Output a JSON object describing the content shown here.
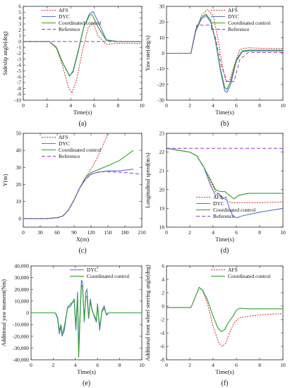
{
  "colors": {
    "AFS": "#d62728",
    "DYC": "#5b6fd6",
    "Coordinated control": "#2ca02c",
    "Reference": "#9b30d9"
  },
  "chart_data": [
    {
      "id": "a",
      "type": "line",
      "caption": "(a)",
      "xlabel": "Time(s)",
      "ylabel": "Sideslip angle(deg)",
      "xlim": [
        0,
        10
      ],
      "ylim": [
        -10,
        6
      ],
      "xticks": [
        0,
        2,
        4,
        6,
        8,
        10
      ],
      "yticks": [
        -10,
        -9,
        -8,
        -7,
        -6,
        -5,
        -4,
        -3,
        -2,
        -1,
        0,
        1,
        2,
        3,
        4,
        5,
        6
      ],
      "legend": "top-left",
      "series": [
        {
          "name": "AFS",
          "style": "dotted",
          "x": [
            0,
            2.2,
            2.8,
            3.3,
            3.8,
            4.1,
            4.5,
            5.0,
            5.5,
            5.9,
            6.3,
            7.0,
            8.0,
            10
          ],
          "y": [
            0,
            0,
            -1.2,
            -4,
            -7.8,
            -8.8,
            -6.5,
            -1.5,
            2.5,
            3.1,
            1.0,
            -0.5,
            -0.3,
            -0.3
          ]
        },
        {
          "name": "DYC",
          "style": "solid",
          "x": [
            0,
            2.2,
            2.8,
            3.3,
            3.9,
            4.2,
            4.6,
            5.1,
            5.6,
            5.9,
            6.4,
            7.0,
            8.0,
            10
          ],
          "y": [
            0,
            0,
            -1.0,
            -3.5,
            -5.8,
            -5.2,
            -2.0,
            2.5,
            4.8,
            5.1,
            3.0,
            0.3,
            0,
            0
          ]
        },
        {
          "name": "Coordinated control",
          "style": "solid",
          "x": [
            0,
            2.2,
            2.8,
            3.3,
            3.9,
            4.2,
            4.6,
            5.1,
            5.6,
            5.8,
            6.3,
            7.0,
            8.0,
            10
          ],
          "y": [
            0,
            0,
            -1.0,
            -3.5,
            -5.9,
            -5.0,
            -1.8,
            2.5,
            4.5,
            4.6,
            2.5,
            0.2,
            0,
            0
          ]
        },
        {
          "name": "Reference",
          "style": "dashed",
          "x": [
            0,
            10
          ],
          "y": [
            0,
            0
          ]
        }
      ]
    },
    {
      "id": "b",
      "type": "line",
      "caption": "(b)",
      "xlabel": "Time(s)",
      "ylabel": "Yaw rate(deg/s)",
      "xlim": [
        0,
        10
      ],
      "ylim": [
        -30,
        30
      ],
      "xticks": [
        0,
        2,
        4,
        6,
        8,
        10
      ],
      "yticks": [
        -30,
        -20,
        -10,
        0,
        10,
        20,
        30
      ],
      "legend": "top-right",
      "series": [
        {
          "name": "AFS",
          "style": "dotted",
          "x": [
            0,
            2.1,
            2.5,
            3.0,
            3.5,
            4.0,
            4.4,
            4.8,
            5.1,
            5.4,
            5.8,
            6.3,
            7.0,
            8.0,
            10
          ],
          "y": [
            0,
            0,
            14,
            24,
            28,
            24,
            10,
            -8,
            -18,
            -18,
            -8,
            2.5,
            3.5,
            3.2,
            3
          ]
        },
        {
          "name": "DYC",
          "style": "solid",
          "x": [
            0,
            2.1,
            2.5,
            3.0,
            3.4,
            3.8,
            4.2,
            4.6,
            5.0,
            5.2,
            5.5,
            6.0,
            6.5,
            7.0,
            8.0,
            10
          ],
          "y": [
            0,
            0,
            14,
            22,
            24,
            20,
            8,
            -10,
            -24,
            -25,
            -20,
            -5,
            1,
            1.5,
            1.5,
            1.5
          ]
        },
        {
          "name": "Coordinated control",
          "style": "solid",
          "x": [
            0,
            2.1,
            2.5,
            3.0,
            3.4,
            3.8,
            4.2,
            4.6,
            5.0,
            5.2,
            5.5,
            6.0,
            6.5,
            7.0,
            8.0,
            10
          ],
          "y": [
            0,
            0,
            15,
            23,
            25,
            21,
            8,
            -9,
            -22,
            -23,
            -18,
            -4,
            1.5,
            2,
            2,
            2
          ]
        },
        {
          "name": "Reference",
          "style": "dashed",
          "x": [
            0,
            2.1,
            2.6,
            3.8,
            4.2,
            4.7,
            5.2,
            5.8,
            6.3,
            7.0,
            10
          ],
          "y": [
            0,
            0,
            18,
            18,
            10,
            -8,
            -18,
            -18,
            -4,
            0.5,
            0.5
          ]
        }
      ]
    },
    {
      "id": "c",
      "type": "line",
      "caption": "(c)",
      "xlabel": "X(m)",
      "ylabel": "Y(m)",
      "xlim": [
        0,
        210
      ],
      "ylim": [
        -5,
        50
      ],
      "xticks": [
        0,
        30,
        60,
        90,
        120,
        150,
        180,
        210
      ],
      "yticks": [
        0,
        10,
        20,
        30,
        40,
        50
      ],
      "legend": "top-left",
      "series": [
        {
          "name": "AFS",
          "style": "dotted",
          "x": [
            0,
            40,
            60,
            70,
            80,
            90,
            100,
            110,
            120,
            130,
            140,
            150
          ],
          "y": [
            0,
            0,
            0.5,
            1.5,
            5,
            11,
            18,
            24,
            29,
            35,
            42,
            50
          ]
        },
        {
          "name": "DYC",
          "style": "solid",
          "x": [
            0,
            40,
            60,
            70,
            80,
            90,
            100,
            110,
            120,
            130,
            150,
            170,
            195
          ],
          "y": [
            0,
            0,
            0.5,
            1.5,
            5,
            11,
            18,
            23,
            26,
            27,
            28,
            28,
            29
          ]
        },
        {
          "name": "Coordinated control",
          "style": "solid",
          "x": [
            0,
            40,
            60,
            70,
            80,
            90,
            100,
            110,
            120,
            135,
            150,
            170,
            195
          ],
          "y": [
            0,
            0,
            0.5,
            1.5,
            5,
            11,
            18,
            24,
            27,
            29,
            31,
            34,
            40
          ]
        },
        {
          "name": "Reference",
          "style": "dashed",
          "x": [
            0,
            40,
            60,
            70,
            80,
            90,
            100,
            110,
            120,
            135,
            150,
            180,
            210
          ],
          "y": [
            0,
            0,
            0.5,
            1.5,
            5,
            11,
            18,
            23,
            26,
            27.5,
            27.5,
            27,
            26
          ]
        }
      ]
    },
    {
      "id": "d",
      "type": "line",
      "caption": "(d)",
      "xlabel": "Time(s)",
      "ylabel": "Longitudinal speed(m/s)",
      "xlim": [
        0,
        10
      ],
      "ylim": [
        18,
        23
      ],
      "xticks": [
        0,
        2,
        4,
        6,
        8,
        10
      ],
      "yticks": [
        18,
        19,
        20,
        21,
        22,
        23
      ],
      "legend": "bottom-left",
      "series": [
        {
          "name": "AFS",
          "style": "dotted",
          "x": [
            0,
            2.0,
            2.6,
            3.2,
            3.8,
            4.2,
            4.8,
            5.2,
            5.6,
            6.5,
            8.0,
            10
          ],
          "y": [
            22.2,
            22.0,
            21.8,
            21.2,
            20.4,
            19.9,
            19.6,
            19.4,
            19.3,
            19.3,
            19.3,
            19.35
          ]
        },
        {
          "name": "DYC",
          "style": "solid",
          "x": [
            0,
            2.0,
            2.6,
            3.2,
            3.8,
            4.2,
            4.5,
            4.8,
            5.1,
            5.4,
            5.7,
            6.0,
            6.5,
            8.0,
            10
          ],
          "y": [
            22.2,
            22.0,
            21.8,
            21.2,
            20.2,
            19.7,
            19.8,
            19.5,
            19.6,
            19.0,
            18.6,
            18.5,
            18.6,
            18.8,
            19.0
          ]
        },
        {
          "name": "Coordinated control",
          "style": "solid",
          "x": [
            0,
            2.0,
            2.6,
            3.2,
            3.8,
            4.2,
            4.6,
            5.0,
            5.4,
            5.8,
            6.2,
            7.0,
            8.0,
            10
          ],
          "y": [
            22.2,
            22.0,
            21.8,
            21.2,
            20.5,
            20.0,
            19.9,
            19.9,
            19.7,
            19.5,
            19.7,
            19.8,
            19.8,
            19.8
          ]
        },
        {
          "name": "Reference",
          "style": "dashed",
          "x": [
            0,
            10
          ],
          "y": [
            22.2,
            22.2
          ]
        }
      ]
    },
    {
      "id": "e",
      "type": "line",
      "caption": "(e)",
      "xlabel": "Time(s)",
      "ylabel": "Additional yaw moment(Nm)",
      "xlim": [
        0,
        10
      ],
      "ylim": [
        -40000,
        40000
      ],
      "xticks": [
        0,
        2,
        4,
        6,
        8,
        10
      ],
      "yticks": [
        -40000,
        -30000,
        -20000,
        -10000,
        0,
        10000,
        20000,
        30000,
        40000
      ],
      "ytick_labels": [
        "-40,000",
        "-30,000",
        "-20,000",
        "-10,000",
        "0",
        "10,000",
        "20,000",
        "30,000",
        "40,000"
      ],
      "legend": "top-right",
      "series": [
        {
          "name": "DYC",
          "style": "solid",
          "x": [
            0,
            2.2,
            2.4,
            2.55,
            2.7,
            2.8,
            3.0,
            3.3,
            3.6,
            3.9,
            4.05,
            4.2,
            4.3,
            4.45,
            4.55,
            4.65,
            4.8,
            4.95,
            5.05,
            5.2,
            5.35,
            5.5,
            5.7,
            5.9,
            6.0,
            6.2,
            6.4,
            6.6,
            6.8,
            7.0,
            8.0,
            10
          ],
          "y": [
            0,
            0,
            -5000,
            -18000,
            -12000,
            -20000,
            -15000,
            5000,
            8000,
            10000,
            -15000,
            18000,
            -30000,
            5000,
            28000,
            26000,
            -8000,
            18000,
            20000,
            -5000,
            12000,
            3000,
            -3000,
            -8000,
            8000,
            -15000,
            2000,
            6000,
            -2000,
            0,
            0,
            0
          ]
        },
        {
          "name": "Coordinated control",
          "style": "solid",
          "x": [
            0,
            2.2,
            2.4,
            2.55,
            2.7,
            2.8,
            3.0,
            3.3,
            3.6,
            3.9,
            4.05,
            4.2,
            4.3,
            4.45,
            4.55,
            4.65,
            4.8,
            4.95,
            5.05,
            5.2,
            5.35,
            5.5,
            5.7,
            5.9,
            6.0,
            6.2,
            6.4,
            6.6,
            6.8,
            7.0,
            8.0,
            10
          ],
          "y": [
            0,
            0,
            -4000,
            -15000,
            -10000,
            -18000,
            -12000,
            4000,
            6000,
            12000,
            -12000,
            15000,
            -38000,
            3000,
            24000,
            22000,
            -6000,
            14000,
            14000,
            -4000,
            10000,
            2000,
            -2000,
            -6000,
            6000,
            -12000,
            1000,
            4000,
            -1000,
            0,
            0,
            0
          ]
        }
      ]
    },
    {
      "id": "f",
      "type": "line",
      "caption": "(f)",
      "xlabel": "Time(s)",
      "ylabel": "Additional front wheel steering angle(deg)",
      "xlim": [
        0,
        10
      ],
      "ylim": [
        -8,
        6
      ],
      "xticks": [
        0,
        2,
        4,
        6,
        8,
        10
      ],
      "yticks": [
        -8,
        -6,
        -4,
        -2,
        0,
        2,
        4,
        6
      ],
      "legend": "top-right",
      "series": [
        {
          "name": "AFS",
          "style": "dotted",
          "x": [
            0,
            2.1,
            2.5,
            2.8,
            3.1,
            3.5,
            4.0,
            4.5,
            4.8,
            5.1,
            5.4,
            5.8,
            6.2,
            7.0,
            8.0,
            10
          ],
          "y": [
            -0.2,
            -0.2,
            1.5,
            2.8,
            2.3,
            0.5,
            -3.0,
            -5.5,
            -6.0,
            -5.5,
            -4.0,
            -2.5,
            -1.8,
            -1.5,
            -1.3,
            -1.1
          ]
        },
        {
          "name": "Coordinated control",
          "style": "solid",
          "x": [
            0,
            2.1,
            2.5,
            2.8,
            3.1,
            3.5,
            4.0,
            4.4,
            4.7,
            5.0,
            5.3,
            5.7,
            6.0,
            6.3,
            7.0,
            8.0,
            10
          ],
          "y": [
            -0.2,
            -0.2,
            1.5,
            2.8,
            2.4,
            1.0,
            -1.5,
            -3.2,
            -3.8,
            -3.5,
            -2.5,
            -1.5,
            -0.6,
            -0.3,
            -0.4,
            -0.4,
            -0.4
          ]
        }
      ]
    }
  ]
}
